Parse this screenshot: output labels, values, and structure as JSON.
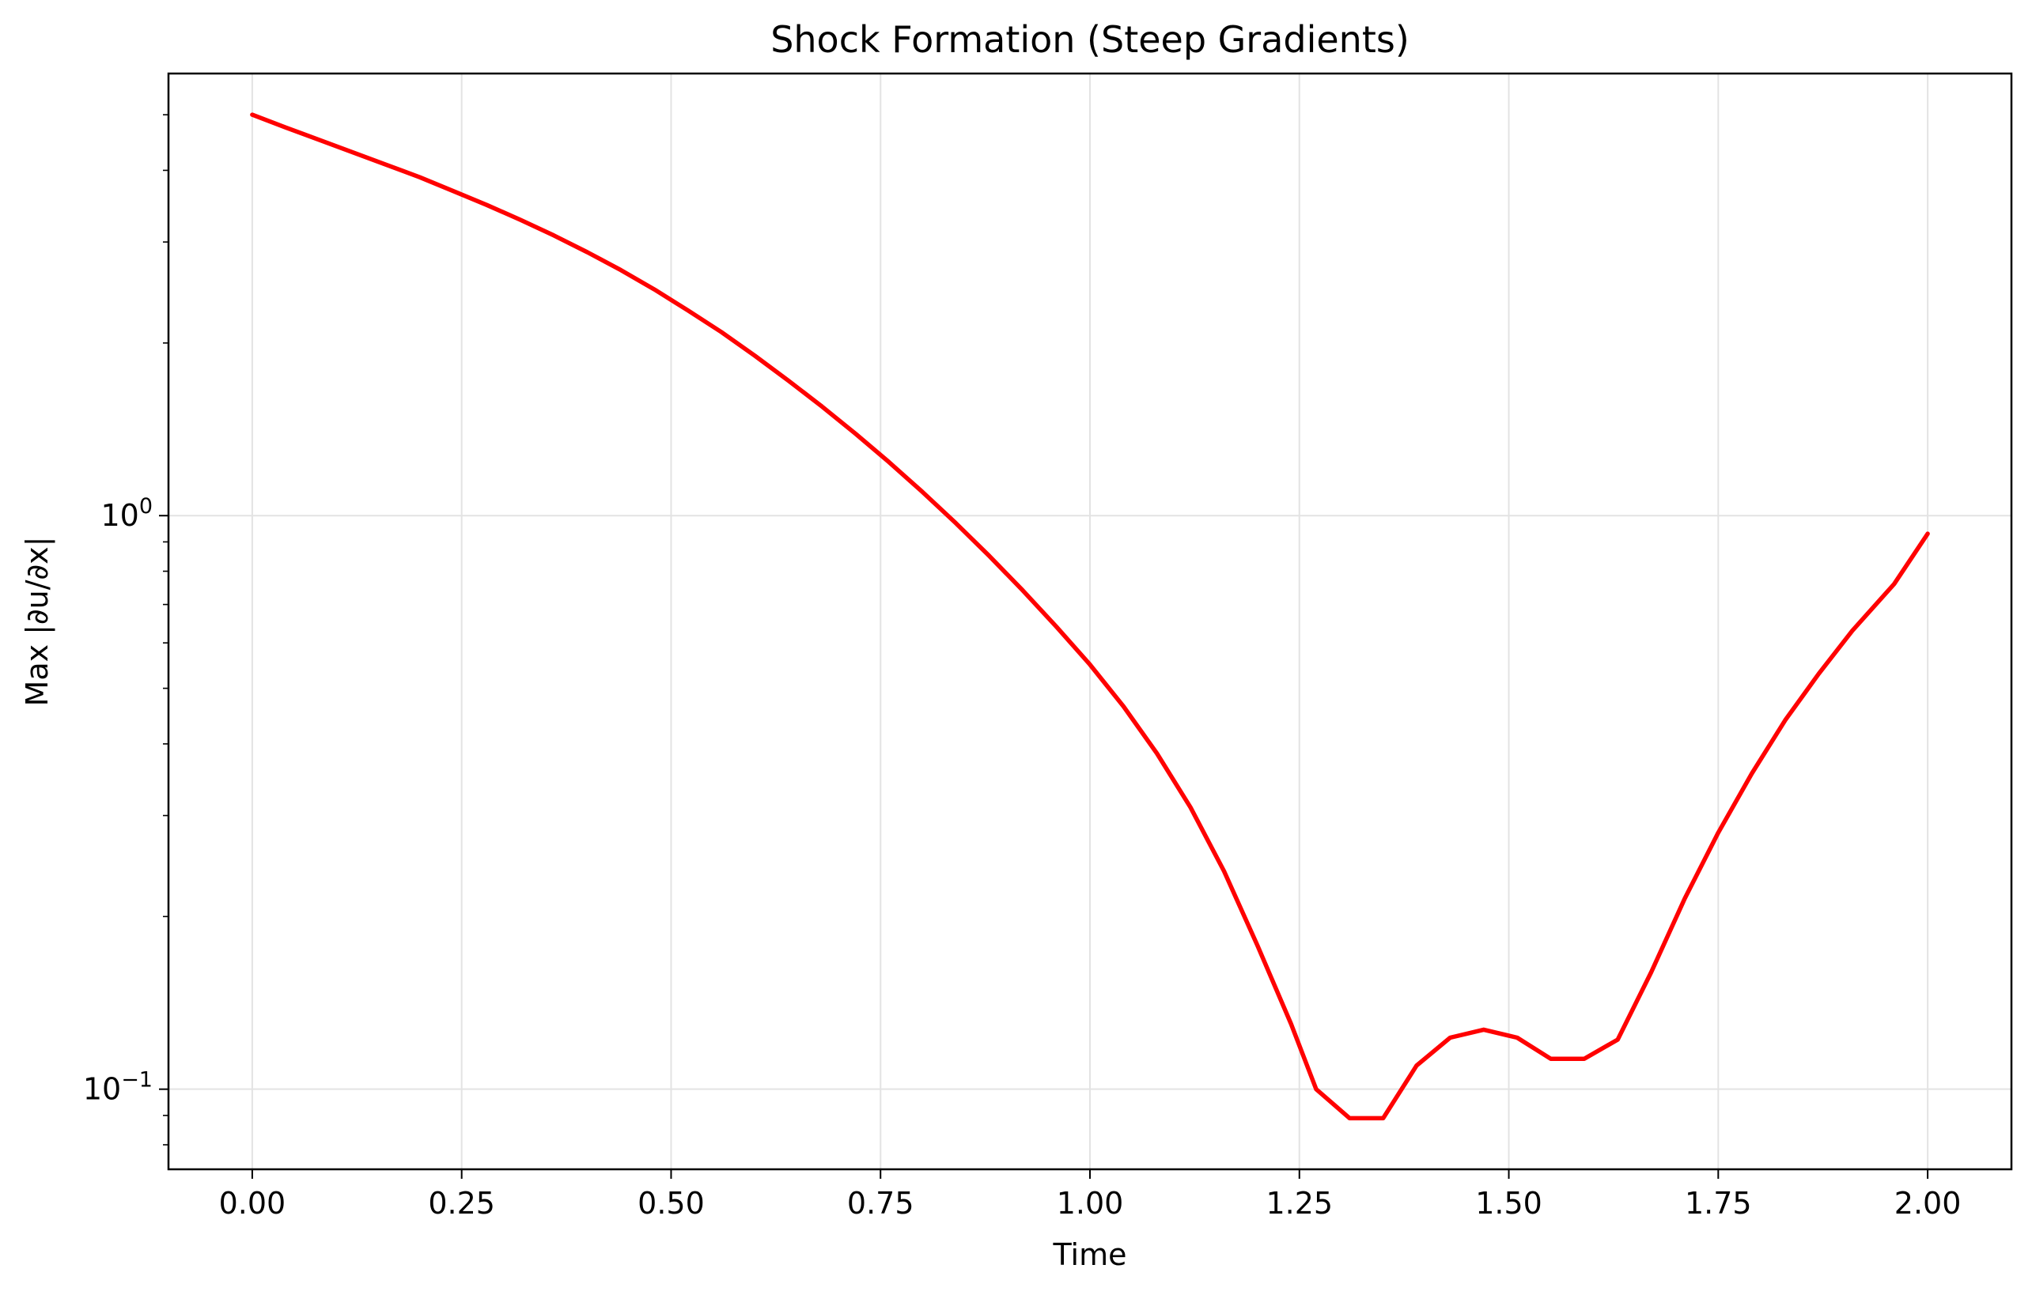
{
  "chart_data": {
    "type": "line",
    "title": "Shock Formation (Steep Gradients)",
    "xlabel": "Time",
    "ylabel": "Max |∂u/∂x|",
    "xlim": [
      -0.1,
      2.1
    ],
    "ylim": [
      0.0725,
      5.9
    ],
    "yscale": "log",
    "grid": true,
    "x_ticks": [
      0.0,
      0.25,
      0.5,
      0.75,
      1.0,
      1.25,
      1.5,
      1.75,
      2.0
    ],
    "x_tick_labels": [
      "0.00",
      "0.25",
      "0.50",
      "0.75",
      "1.00",
      "1.25",
      "1.50",
      "1.75",
      "2.00"
    ],
    "y_major_ticks": [
      {
        "value": 1.0,
        "base": "10",
        "exp": "0"
      },
      {
        "value": 0.1,
        "base": "10",
        "exp": "−1"
      }
    ],
    "y_minor_ticks": [
      0.08,
      0.09,
      0.2,
      0.3,
      0.4,
      0.5,
      0.6,
      0.7,
      0.8,
      0.9,
      2,
      3,
      4,
      5
    ],
    "series": [
      {
        "color": "#ff0000",
        "x": [
          0.0,
          0.04,
          0.08,
          0.12,
          0.16,
          0.2,
          0.24,
          0.28,
          0.32,
          0.36,
          0.4,
          0.44,
          0.48,
          0.52,
          0.56,
          0.6,
          0.64,
          0.68,
          0.72,
          0.76,
          0.8,
          0.84,
          0.88,
          0.92,
          0.96,
          1.0,
          1.04,
          1.08,
          1.12,
          1.16,
          1.2,
          1.24,
          1.27,
          1.31,
          1.35,
          1.39,
          1.43,
          1.47,
          1.51,
          1.55,
          1.59,
          1.63,
          1.67,
          1.71,
          1.75,
          1.79,
          1.83,
          1.87,
          1.91,
          1.96,
          2.0
        ],
        "y": [
          5.0,
          4.75,
          4.52,
          4.3,
          4.09,
          3.89,
          3.68,
          3.48,
          3.28,
          3.08,
          2.88,
          2.68,
          2.48,
          2.28,
          2.09,
          1.9,
          1.72,
          1.55,
          1.39,
          1.24,
          1.1,
          0.97,
          0.85,
          0.74,
          0.64,
          0.55,
          0.465,
          0.385,
          0.31,
          0.24,
          0.178,
          0.13,
          0.1,
          0.089,
          0.089,
          0.11,
          0.123,
          0.127,
          0.123,
          0.113,
          0.113,
          0.122,
          0.16,
          0.215,
          0.28,
          0.355,
          0.44,
          0.53,
          0.63,
          0.76,
          0.93
        ]
      }
    ]
  }
}
